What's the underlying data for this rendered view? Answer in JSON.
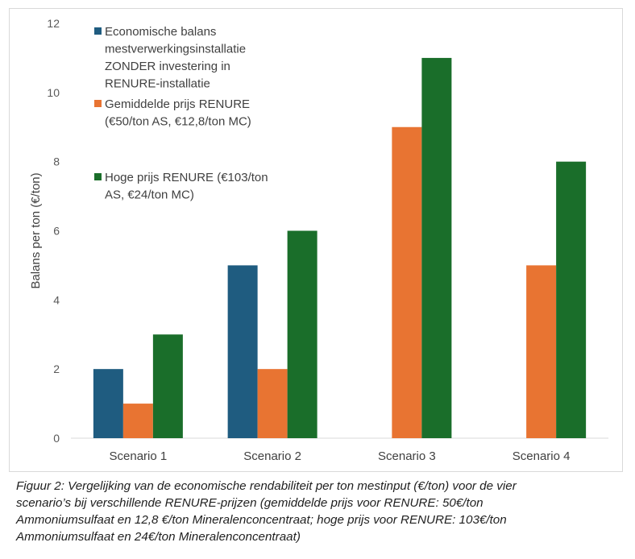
{
  "chart_data": {
    "type": "bar",
    "categories": [
      "Scenario 1",
      "Scenario 2",
      "Scenario 3",
      "Scenario 4"
    ],
    "series": [
      {
        "name": "Economische balans mestverwerkingsinstallatie ZONDER investering in RENURE-installatie",
        "name_lines": [
          "Economische balans",
          "mestverwerkingsinstallatie",
          "ZONDER investering in",
          "RENURE-installatie"
        ],
        "color": "#1f5c80",
        "values": [
          2,
          5,
          null,
          null
        ]
      },
      {
        "name": "Gemiddelde prijs RENURE (€50/ton AS, €12,8/ton MC)",
        "name_lines": [
          "Gemiddelde prijs RENURE",
          "(€50/ton AS, €12,8/ton MC)"
        ],
        "color": "#e87432",
        "values": [
          1,
          2,
          9,
          5
        ]
      },
      {
        "name": "Hoge prijs RENURE (€103/ton AS, €24/ton MC)",
        "name_lines": [
          "Hoge prijs RENURE (€103/ton",
          "AS, €24/ton MC)"
        ],
        "color": "#1a6e2a",
        "values": [
          3,
          6,
          11,
          8
        ]
      }
    ],
    "ylabel": "Balans per ton (€/ton)",
    "ylim": [
      0,
      12
    ],
    "yticks": [
      "0",
      "2",
      "4",
      "6",
      "8",
      "10",
      "12"
    ],
    "grid": false,
    "legend_position": "top-left"
  },
  "caption": "Figuur 2: Vergelijking van de economische rendabiliteit per ton mestinput (€/ton) voor de vier scenario’s bij verschillende RENURE-prijzen (gemiddelde prijs voor RENURE: 50€/ton Ammoniumsulfaat en 12,8 €/ton Mineralenconcentraat; hoge prijs voor RENURE: 103€/ton Ammoniumsulfaat en 24€/ton Mineralenconcentraat)",
  "caption_lines": [
    "Figuur 2: Vergelijking van de economische rendabiliteit per ton mestinput (€/ton) voor de vier",
    "scenario’s bij verschillende RENURE-prijzen (gemiddelde prijs voor RENURE: 50€/ton",
    "Ammoniumsulfaat en 12,8 €/ton Mineralenconcentraat; hoge prijs voor RENURE: 103€/ton",
    "Ammoniumsulfaat en 24€/ton Mineralenconcentraat)"
  ]
}
